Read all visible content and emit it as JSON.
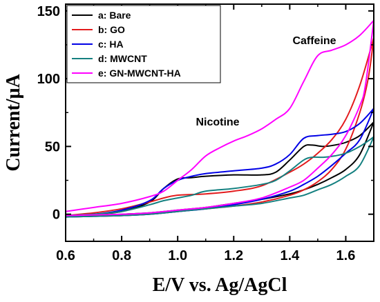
{
  "chart_data": {
    "type": "line",
    "title": "",
    "xlabel": "E/V vs. Ag/AgCl",
    "ylabel": "Current/μA",
    "xlim": [
      0.6,
      1.7
    ],
    "ylim": [
      -20,
      155
    ],
    "xticks": [
      "0.6",
      "0.8",
      "1.0",
      "1.2",
      "1.4",
      "1.6"
    ],
    "yticks": [
      "0",
      "50",
      "100",
      "150"
    ],
    "xtick_values": [
      0.6,
      0.8,
      1.0,
      1.2,
      1.4,
      1.6
    ],
    "ytick_values": [
      0,
      50,
      100,
      150
    ],
    "grid": false,
    "legend_position": "top-left",
    "annotations": [
      {
        "text": "Nicotine",
        "x": 1.23,
        "y": 72
      },
      {
        "text": "Caffeine",
        "x": 1.58,
        "y": 133
      }
    ],
    "series": [
      {
        "name": "a: Bare",
        "color": "#000000",
        "forward": [
          [
            0.6,
            -1
          ],
          [
            0.7,
            0
          ],
          [
            0.8,
            2
          ],
          [
            0.9,
            9
          ],
          [
            0.95,
            19
          ],
          [
            1.0,
            26
          ],
          [
            1.05,
            27
          ],
          [
            1.1,
            28
          ],
          [
            1.2,
            29
          ],
          [
            1.3,
            29
          ],
          [
            1.35,
            31
          ],
          [
            1.4,
            40
          ],
          [
            1.45,
            50
          ],
          [
            1.48,
            51
          ],
          [
            1.52,
            50
          ],
          [
            1.56,
            51
          ],
          [
            1.6,
            53
          ],
          [
            1.65,
            58
          ],
          [
            1.7,
            68
          ]
        ],
        "reverse": [
          [
            1.7,
            68
          ],
          [
            1.65,
            44
          ],
          [
            1.6,
            33
          ],
          [
            1.55,
            27
          ],
          [
            1.5,
            22
          ],
          [
            1.45,
            18
          ],
          [
            1.4,
            15
          ],
          [
            1.3,
            11
          ],
          [
            1.2,
            8
          ],
          [
            1.1,
            5
          ],
          [
            1.0,
            3
          ],
          [
            0.9,
            1
          ],
          [
            0.8,
            0
          ],
          [
            0.7,
            -1
          ],
          [
            0.6,
            -2
          ]
        ]
      },
      {
        "name": "b: GO",
        "color": "#e31a1c",
        "forward": [
          [
            0.6,
            -1
          ],
          [
            0.7,
            1
          ],
          [
            0.8,
            4
          ],
          [
            0.9,
            9
          ],
          [
            0.95,
            12
          ],
          [
            1.0,
            14
          ],
          [
            1.1,
            15
          ],
          [
            1.2,
            17
          ],
          [
            1.3,
            21
          ],
          [
            1.4,
            31
          ],
          [
            1.45,
            37
          ],
          [
            1.5,
            45
          ],
          [
            1.55,
            55
          ],
          [
            1.6,
            70
          ],
          [
            1.65,
            95
          ],
          [
            1.7,
            130
          ]
        ],
        "reverse": [
          [
            1.7,
            130
          ],
          [
            1.68,
            100
          ],
          [
            1.65,
            75
          ],
          [
            1.6,
            48
          ],
          [
            1.55,
            33
          ],
          [
            1.5,
            24
          ],
          [
            1.45,
            18
          ],
          [
            1.4,
            14
          ],
          [
            1.3,
            9
          ],
          [
            1.2,
            6
          ],
          [
            1.1,
            4
          ],
          [
            1.0,
            2
          ],
          [
            0.9,
            0
          ],
          [
            0.8,
            -1
          ],
          [
            0.7,
            -1.5
          ],
          [
            0.6,
            -2
          ]
        ]
      },
      {
        "name": "c: HA",
        "color": "#0000e6",
        "forward": [
          [
            0.6,
            -1
          ],
          [
            0.7,
            0
          ],
          [
            0.8,
            3
          ],
          [
            0.9,
            10
          ],
          [
            0.95,
            19
          ],
          [
            1.0,
            25
          ],
          [
            1.05,
            28
          ],
          [
            1.1,
            30
          ],
          [
            1.2,
            32
          ],
          [
            1.3,
            34
          ],
          [
            1.35,
            37
          ],
          [
            1.4,
            44
          ],
          [
            1.45,
            56
          ],
          [
            1.5,
            58
          ],
          [
            1.55,
            59
          ],
          [
            1.6,
            61
          ],
          [
            1.65,
            67
          ],
          [
            1.7,
            78
          ]
        ],
        "reverse": [
          [
            1.7,
            78
          ],
          [
            1.65,
            55
          ],
          [
            1.6,
            45
          ],
          [
            1.55,
            36
          ],
          [
            1.5,
            28
          ],
          [
            1.45,
            22
          ],
          [
            1.4,
            17
          ],
          [
            1.3,
            11
          ],
          [
            1.2,
            7
          ],
          [
            1.1,
            4
          ],
          [
            1.0,
            2
          ],
          [
            0.9,
            0
          ],
          [
            0.8,
            -1
          ],
          [
            0.7,
            -1.5
          ],
          [
            0.6,
            -2
          ]
        ]
      },
      {
        "name": "d: MWCNT",
        "color": "#148080",
        "forward": [
          [
            0.6,
            -1
          ],
          [
            0.7,
            0
          ],
          [
            0.8,
            2
          ],
          [
            0.9,
            7
          ],
          [
            0.95,
            10
          ],
          [
            1.0,
            12
          ],
          [
            1.05,
            14
          ],
          [
            1.1,
            17
          ],
          [
            1.2,
            19
          ],
          [
            1.3,
            22
          ],
          [
            1.35,
            25
          ],
          [
            1.4,
            32
          ],
          [
            1.45,
            40
          ],
          [
            1.48,
            42
          ],
          [
            1.52,
            42
          ],
          [
            1.56,
            43
          ],
          [
            1.6,
            45
          ],
          [
            1.65,
            50
          ],
          [
            1.7,
            57
          ]
        ],
        "reverse": [
          [
            1.7,
            57
          ],
          [
            1.65,
            36
          ],
          [
            1.6,
            28
          ],
          [
            1.55,
            22
          ],
          [
            1.5,
            18
          ],
          [
            1.45,
            14
          ],
          [
            1.4,
            12
          ],
          [
            1.3,
            8
          ],
          [
            1.2,
            6
          ],
          [
            1.1,
            4
          ],
          [
            1.0,
            2
          ],
          [
            0.9,
            0
          ],
          [
            0.8,
            -1
          ],
          [
            0.7,
            -1.5
          ],
          [
            0.6,
            -2
          ]
        ]
      },
      {
        "name": "e: GN-MWCNT-HA",
        "color": "#ff00ff",
        "forward": [
          [
            0.6,
            2
          ],
          [
            0.7,
            5
          ],
          [
            0.8,
            8
          ],
          [
            0.9,
            13
          ],
          [
            0.95,
            17
          ],
          [
            1.0,
            25
          ],
          [
            1.05,
            33
          ],
          [
            1.1,
            43
          ],
          [
            1.15,
            49
          ],
          [
            1.2,
            54
          ],
          [
            1.25,
            58
          ],
          [
            1.3,
            63
          ],
          [
            1.35,
            70
          ],
          [
            1.4,
            78
          ],
          [
            1.45,
            98
          ],
          [
            1.5,
            117
          ],
          [
            1.55,
            121
          ],
          [
            1.6,
            125
          ],
          [
            1.65,
            132
          ],
          [
            1.7,
            143
          ]
        ],
        "reverse": [
          [
            1.7,
            143
          ],
          [
            1.67,
            95
          ],
          [
            1.65,
            80
          ],
          [
            1.6,
            58
          ],
          [
            1.55,
            44
          ],
          [
            1.5,
            34
          ],
          [
            1.45,
            25
          ],
          [
            1.4,
            20
          ],
          [
            1.3,
            12
          ],
          [
            1.2,
            8
          ],
          [
            1.1,
            5
          ],
          [
            1.0,
            3
          ],
          [
            0.9,
            1
          ],
          [
            0.8,
            0
          ],
          [
            0.7,
            -0.5
          ],
          [
            0.6,
            -1
          ]
        ]
      }
    ]
  }
}
